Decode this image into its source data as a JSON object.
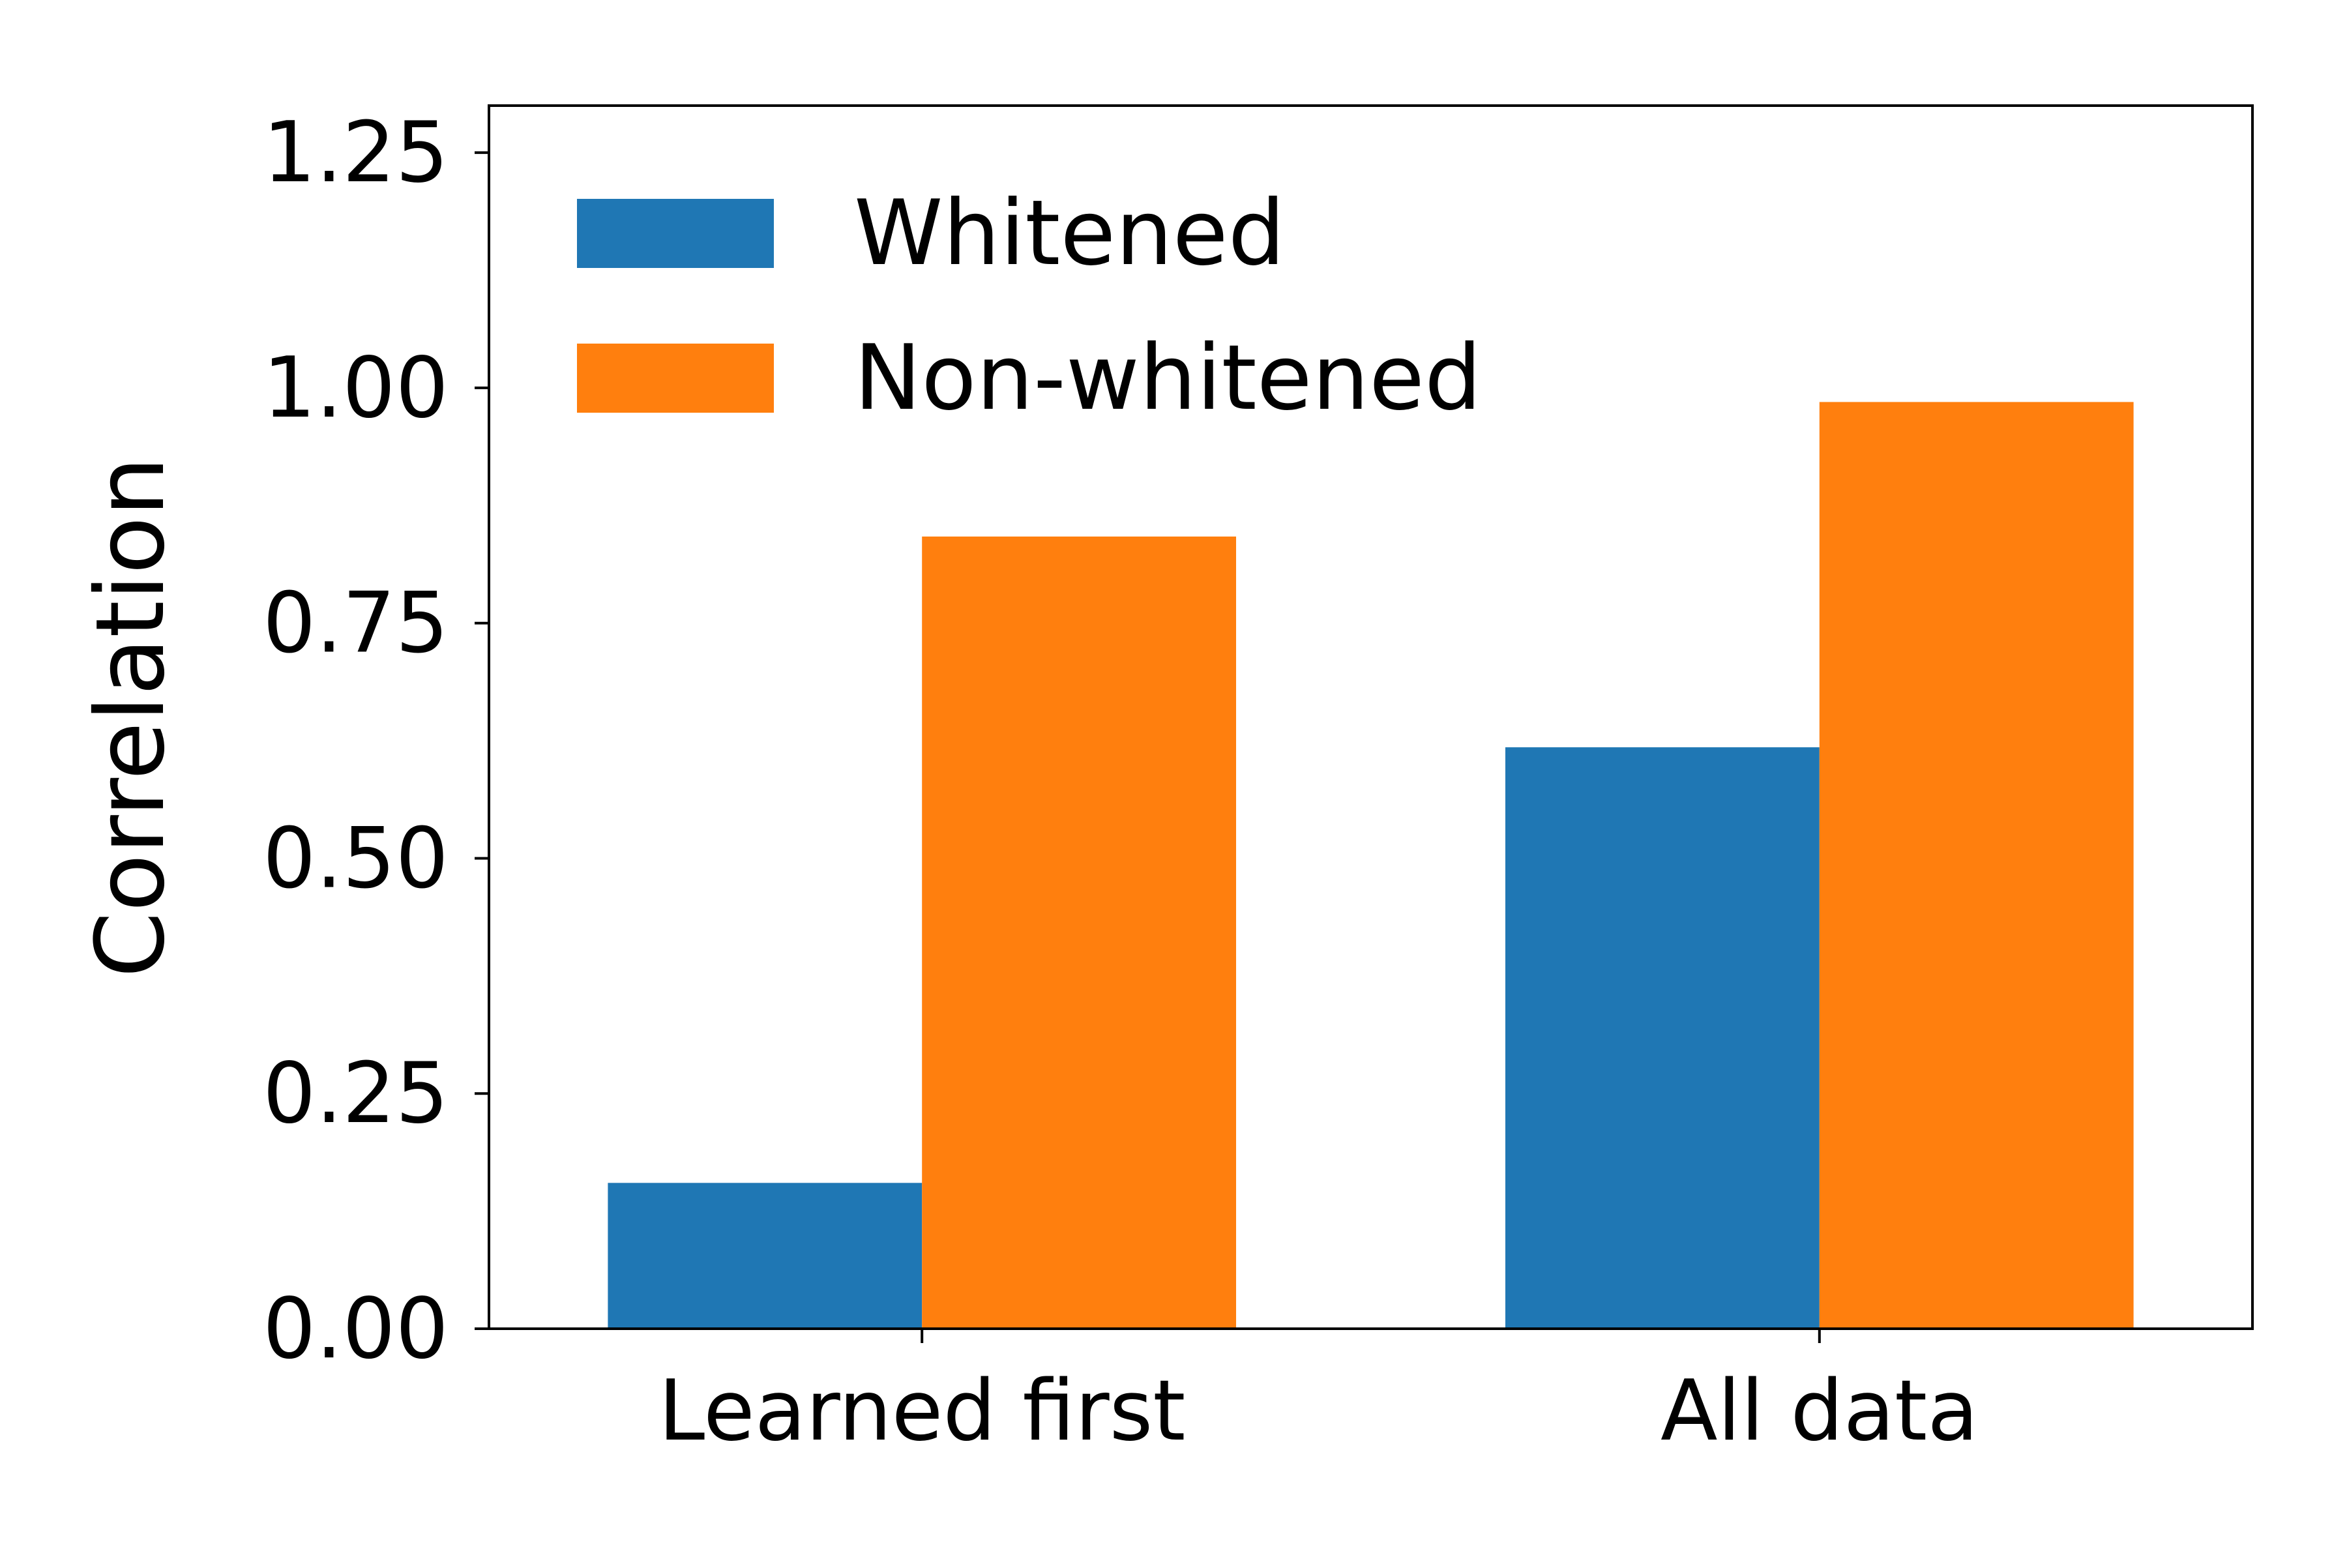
{
  "chart_data": {
    "type": "bar",
    "categories": [
      "Learned first",
      "All data"
    ],
    "series": [
      {
        "name": "Whitened",
        "values": [
          0.155,
          0.618
        ],
        "color": "#1f77b4"
      },
      {
        "name": "Non-whitened",
        "values": [
          0.842,
          0.985
        ],
        "color": "#ff7f0e"
      }
    ],
    "title": "",
    "xlabel": "",
    "ylabel": "Correlation",
    "ylim": [
      0,
      1.3
    ],
    "yticks": [
      0.0,
      0.25,
      0.5,
      0.75,
      1.0,
      1.25
    ],
    "ytick_labels": [
      "0.00",
      "0.25",
      "0.50",
      "0.75",
      "1.00",
      "1.25"
    ],
    "grid": false,
    "legend_position": "top-left"
  }
}
